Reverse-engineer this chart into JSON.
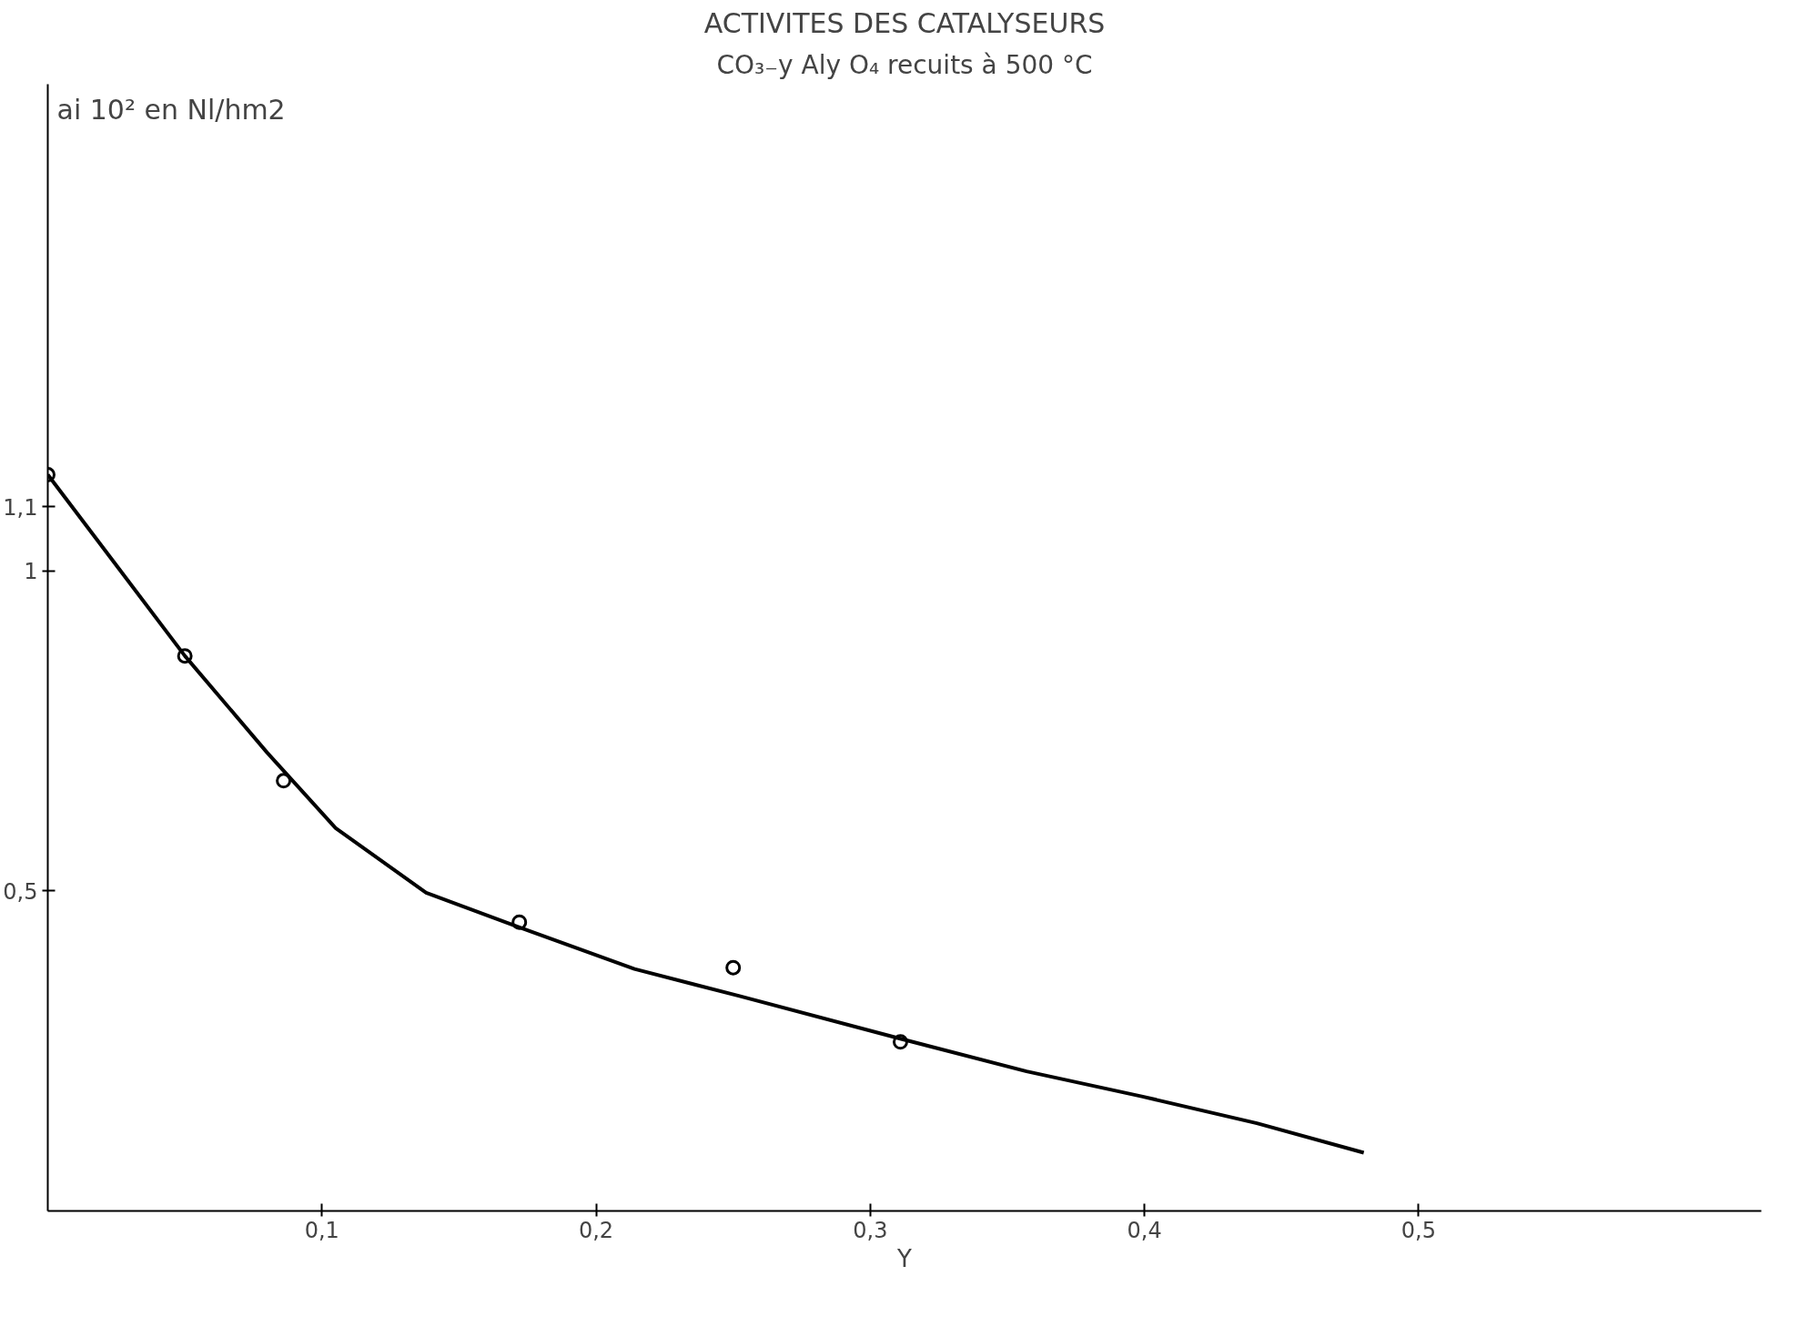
{
  "chart_data": {
    "type": "scatter",
    "title": "ACTIVITES DES CATALYSEURS",
    "subtitle": "CO₃₋y Aly O₄ recuits à 500 °C",
    "ylabel": "ai 10² en Nl/hm2",
    "xlabel": "Y",
    "xlim": [
      0,
      0.625
    ],
    "ylim": [
      0,
      1.76
    ],
    "xticks": [
      {
        "value": 0.1,
        "label": "0,1"
      },
      {
        "value": 0.2,
        "label": "0,2"
      },
      {
        "value": 0.3,
        "label": "0,3"
      },
      {
        "value": 0.4,
        "label": "0,4"
      },
      {
        "value": 0.5,
        "label": "0,5"
      }
    ],
    "yticks": [
      {
        "value": 0.5,
        "label": "0,5"
      },
      1,
      {
        "value": 1.1,
        "label": "1,1"
      }
    ],
    "grid": false,
    "marker": "circle",
    "series": [
      {
        "color": "#000000",
        "x": [
          0.0,
          0.05,
          0.086,
          0.172,
          0.25,
          0.311
        ],
        "values": [
          1.15,
          0.867,
          0.672,
          0.451,
          0.38,
          0.264
        ]
      },
      {
        "type": "line",
        "color": "#000000",
        "marker": "none",
        "line_style": "solid",
        "x": [
          0.0,
          0.029,
          0.05,
          0.08,
          0.105,
          0.138,
          0.172,
          0.214,
          0.252,
          0.311,
          0.357,
          0.399,
          0.441,
          0.48
        ],
        "values": [
          1.15,
          0.986,
          0.867,
          0.716,
          0.598,
          0.497,
          0.443,
          0.378,
          0.336,
          0.269,
          0.218,
          0.179,
          0.137,
          0.091
        ]
      }
    ]
  }
}
